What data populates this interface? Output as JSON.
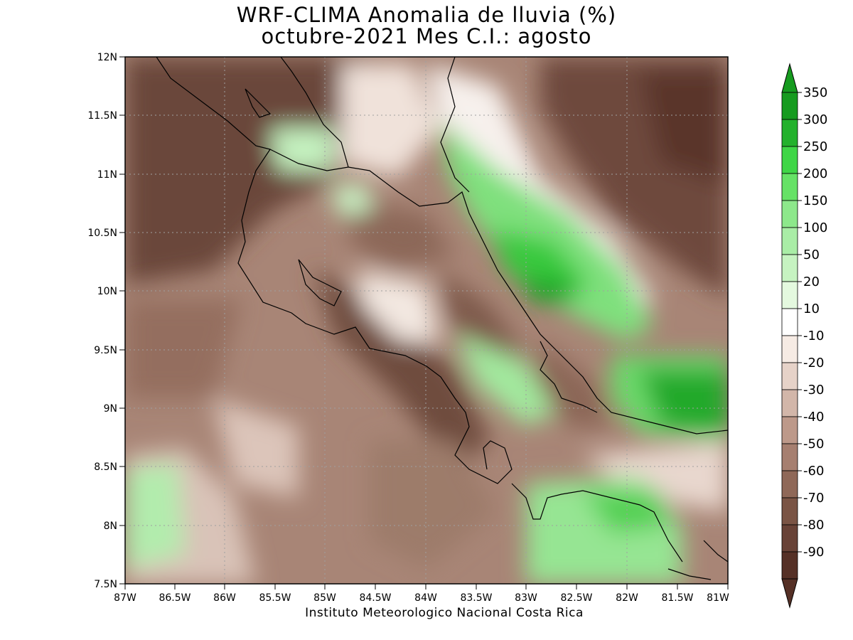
{
  "title_line1": "WRF-CLIMA Anomalia de lluvia (%)",
  "title_line2": "octubre-2021 Mes C.I.: agosto",
  "credit": "Instituto Meteorologico Nacional Costa Rica",
  "map": {
    "lat_labels": [
      "12N",
      "11.5N",
      "11N",
      "10.5N",
      "10N",
      "9.5N",
      "9N",
      "8.5N",
      "8N",
      "7.5N"
    ],
    "lon_labels": [
      "87W",
      "86.5W",
      "86W",
      "85.5W",
      "85W",
      "84.5W",
      "84W",
      "83.5W",
      "83W",
      "82.5W",
      "82W",
      "81.5W",
      "81W"
    ],
    "colors": {
      "dry_dark": "#5e382d",
      "dry_mid": "#a87d6e",
      "dry_light": "#e6d1c6",
      "neutral": "#ffffff",
      "wet_light": "#a6eca2",
      "wet_mid": "#3bd33b",
      "wet_dark": "#16a01c"
    }
  },
  "colorbar": {
    "labels": [
      "350",
      "300",
      "250",
      "200",
      "150",
      "100",
      "50",
      "20",
      "10",
      "-10",
      "-20",
      "-30",
      "-40",
      "-50",
      "-60",
      "-70",
      "-80",
      "-90"
    ],
    "colors": [
      "#169b1f",
      "#23b12c",
      "#3fd646",
      "#66e266",
      "#8de88b",
      "#a9eda6",
      "#c6f3c1",
      "#e4f9df",
      "#ffffff",
      "#f6ebe4",
      "#e6d2c8",
      "#d2b6a9",
      "#bd998a",
      "#a67f70",
      "#8f6858",
      "#7a5445",
      "#684237",
      "#553026"
    ],
    "top_arrow_color": "#169b1f",
    "bottom_arrow_color": "#553026"
  }
}
